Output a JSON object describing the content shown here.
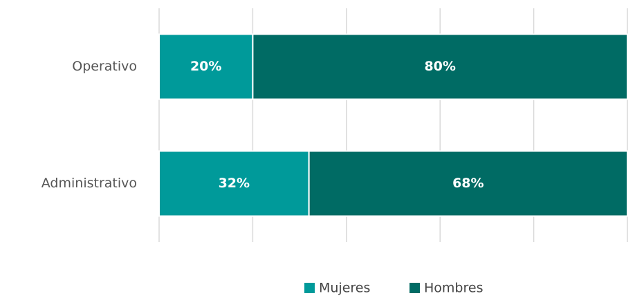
{
  "chart_data": {
    "type": "stacked_bar_horizontal",
    "categories": [
      "Operativo",
      "Administrativo"
    ],
    "series": [
      {
        "name": "Mujeres",
        "color": "#009a9a",
        "values": [
          20,
          32
        ],
        "value_labels": [
          "20%",
          "32%"
        ]
      },
      {
        "name": "Hombres",
        "color": "#006b64",
        "values": [
          80,
          68
        ],
        "value_labels": [
          "80%",
          "68%"
        ]
      }
    ],
    "xlim": [
      0,
      100
    ],
    "xticks": [
      0,
      20,
      40,
      60,
      80,
      100
    ],
    "grid": true,
    "legend": "bottom"
  }
}
